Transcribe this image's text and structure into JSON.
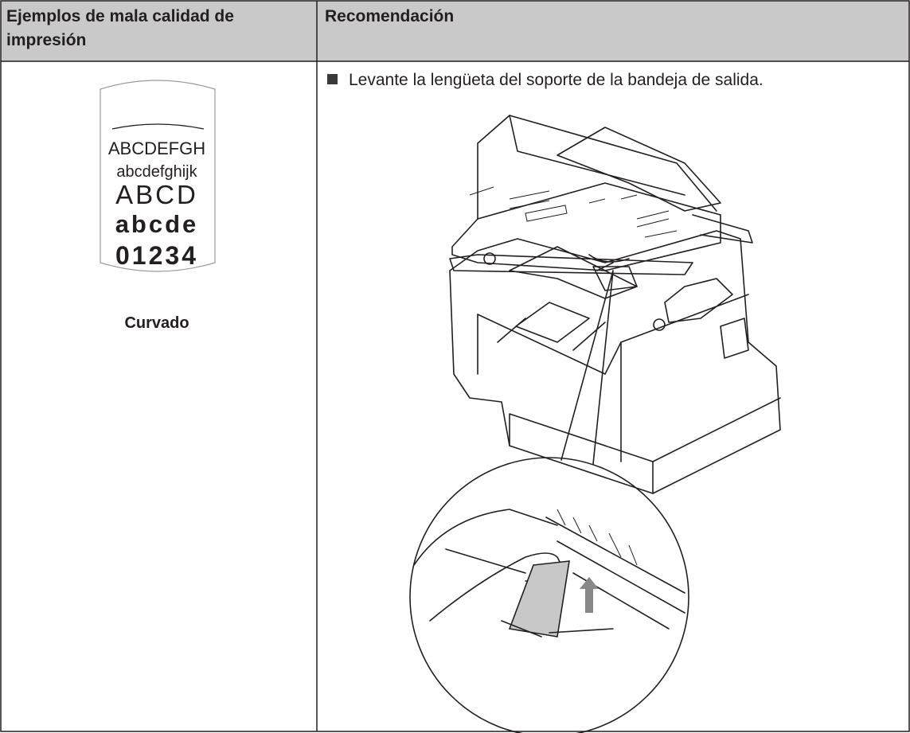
{
  "table": {
    "header": [
      "Ejemplos de mala calidad de impresión",
      "Recomendación"
    ],
    "example": {
      "sample_lines": [
        "ABCDEFGH",
        "abcdefghijk",
        "ABCD",
        "abcde",
        "01234"
      ],
      "caption": "Curvado"
    },
    "recommendation": "Levante la lengüeta del soporte de la bandeja de salida."
  }
}
